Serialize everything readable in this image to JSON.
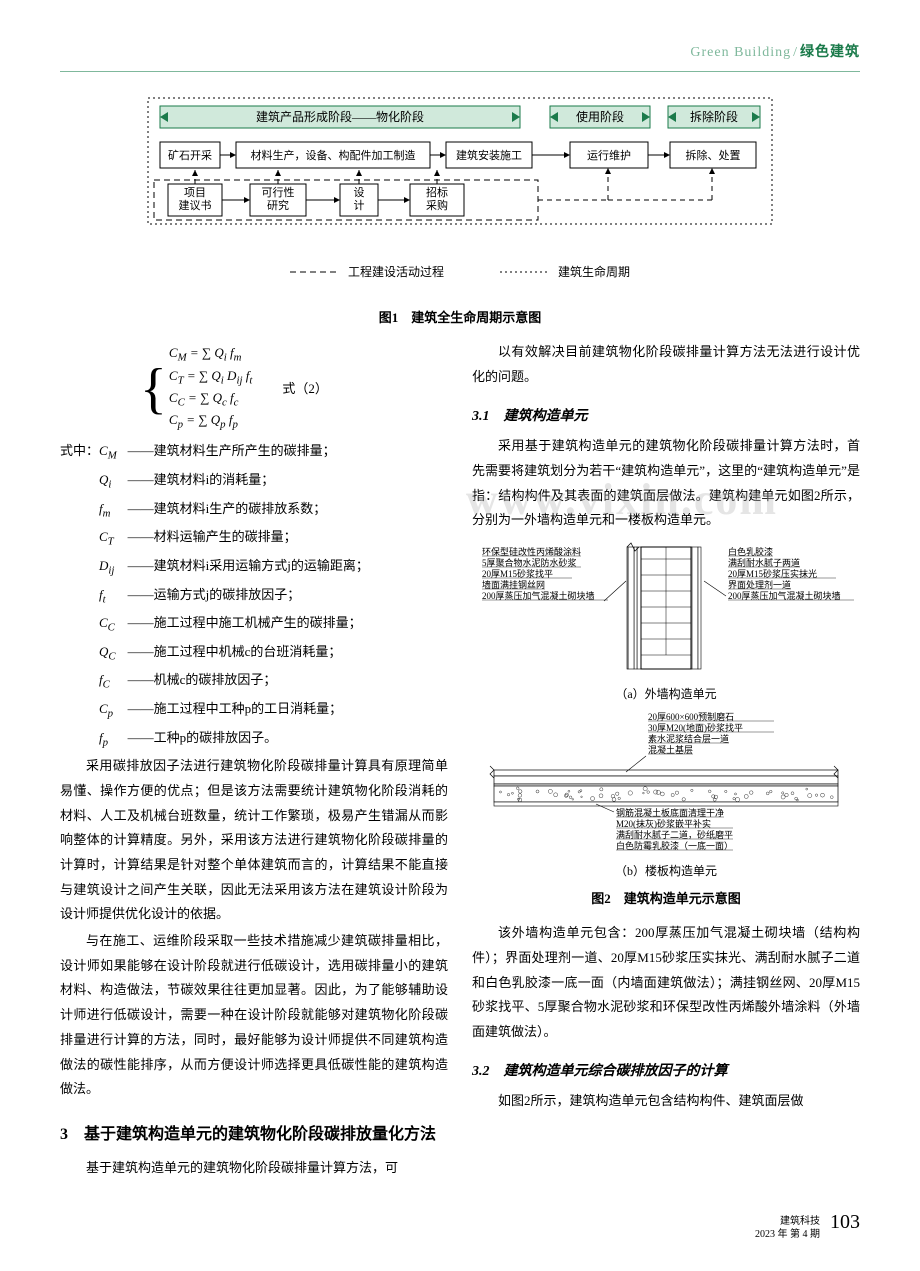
{
  "header": {
    "en": "Green Building",
    "sep": "/",
    "cn": "绿色建筑"
  },
  "fig1": {
    "caption": "图1　建筑全生命周期示意图",
    "phase_bar_color": "#d0e9db",
    "phase_bar_border": "#1a7a4a",
    "box_border": "#000000",
    "box_fill": "#ffffff",
    "font_size": 12,
    "phases": [
      "建筑产品形成阶段——物化阶段",
      "使用阶段",
      "拆除阶段"
    ],
    "row1": [
      "矿石开采",
      "材料生产，设备、构配件加工制造",
      "建筑安装施工",
      "运行维护",
      "拆除、处置"
    ],
    "row2": [
      "项目\n建议书",
      "可行性\n研究",
      "设\n计",
      "招标\n采购"
    ],
    "legend": [
      {
        "style": "dashed",
        "text": "工程建设活动过程"
      },
      {
        "style": "dotted",
        "text": "建筑生命周期"
      }
    ]
  },
  "equations": {
    "lines": [
      "C<sub>M</sub> = ∑ Q<sub>i</sub> f<sub>m</sub>",
      "C<sub>T</sub> = ∑ Q<sub>i</sub> D<sub>ij</sub> f<sub>t</sub>",
      "C<sub>C</sub> = ∑ Q<sub>c</sub> f<sub>c</sub>",
      "C<sub>p</sub> = ∑ Q<sub>p</sub> f<sub>p</sub>"
    ],
    "label": "式（2）"
  },
  "where_lead": "式中：",
  "where": [
    {
      "sym": "C<sub>M</sub>",
      "desc": "建筑材料生产所产生的碳排量；"
    },
    {
      "sym": "Q<sub>i</sub>",
      "desc": "建筑材料i的消耗量；"
    },
    {
      "sym": "f<sub>m</sub>",
      "desc": "建筑材料i生产的碳排放系数；"
    },
    {
      "sym": "C<sub>T</sub>",
      "desc": "材料运输产生的碳排量；"
    },
    {
      "sym": "D<sub>ij</sub>",
      "desc": "建筑材料i采用运输方式j的运输距离；"
    },
    {
      "sym": "f<sub>t</sub>",
      "desc": "运输方式j的碳排放因子；"
    },
    {
      "sym": "C<sub>C</sub>",
      "desc": "施工过程中施工机械产生的碳排量；"
    },
    {
      "sym": "Q<sub>C</sub>",
      "desc": "施工过程中机械c的台班消耗量；"
    },
    {
      "sym": "f<sub>C</sub>",
      "desc": "机械c的碳排放因子；"
    },
    {
      "sym": "C<sub>p</sub>",
      "desc": "施工过程中工种p的工日消耗量；"
    },
    {
      "sym": "f<sub>p</sub>",
      "desc": "工种p的碳排放因子。"
    }
  ],
  "left_paras": [
    "采用碳排放因子法进行建筑物化阶段碳排量计算具有原理简单易懂、操作方便的优点；但是该方法需要统计建筑物化阶段消耗的材料、人工及机械台班数量，统计工作繁琐，极易产生错漏从而影响整体的计算精度。另外，采用该方法进行建筑物化阶段碳排量的计算时，计算结果是针对整个单体建筑而言的，计算结果不能直接与建筑设计之间产生关联，因此无法采用该方法在建筑设计阶段为设计师提供优化设计的依据。",
    "与在施工、运维阶段采取一些技术措施减少建筑碳排量相比，设计师如果能够在设计阶段就进行低碳设计，选用碳排量小的建筑材料、构造做法，节碳效果往往更加显著。因此，为了能够辅助设计师进行低碳设计，需要一种在设计阶段就能够对建筑物化阶段碳排量进行计算的方法，同时，最好能够为设计师提供不同建筑构造做法的碳性能排序，从而方便设计师选择更具低碳性能的建筑构造做法。"
  ],
  "sec3_title": "3　基于建筑构造单元的建筑物化阶段碳排放量化方法",
  "sec3_para": "基于建筑构造单元的建筑物化阶段碳排量计算方法，可",
  "right_lead": "以有效解决目前建筑物化阶段碳排量计算方法无法进行设计优化的问题。",
  "sec31_title": "3.1　建筑构造单元",
  "sec31_para": "采用基于建筑构造单元的建筑物化阶段碳排量计算方法时，首先需要将建筑划分为若干“建筑构造单元”，这里的“建筑构造单元”是指：结构构件及其表面的建筑面层做法。建筑构建单元如图2所示，分别为一外墙构造单元和一楼板构造单元。",
  "fig2": {
    "caption": "图2　建筑构造单元示意图",
    "sub_a": "（a）外墙构造单元",
    "sub_b": "（b）楼板构造单元",
    "wall": {
      "left_labels": [
        "环保型硅改性丙烯酸涂料",
        "5厚聚合物水泥防水砂浆",
        "20厚M15砂浆找平",
        "墙面满挂钢丝网",
        "200厚蒸压加气混凝土砌块墙"
      ],
      "right_labels": [
        "白色乳胶漆",
        "满刮耐水腻子两道",
        "20厚M15砂浆压实抹光",
        "界面处理剂一道",
        "200厚蒸压加气混凝土砌块墙"
      ]
    },
    "slab": {
      "top_labels": [
        "20厚600×600预制磨石",
        "30厚M20(地面)砂浆找平",
        "素水泥浆结合层一道",
        "混凝土基层"
      ],
      "bottom_labels": [
        "钢筋混凝土板底面清理干净",
        "M20(抹灰)砂浆嵌平补实",
        "满刮耐水腻子二道，砂纸磨平",
        "白色防霉乳胶漆（一底一面）"
      ]
    },
    "colors": {
      "line": "#000000",
      "font_size": 9
    }
  },
  "sec31_para2": "该外墙构造单元包含：200厚蒸压加气混凝土砌块墙（结构构件）；界面处理剂一道、20厚M15砂浆压实抹光、满刮耐水腻子二道和白色乳胶漆一底一面（内墙面建筑做法）；满挂钢丝网、20厚M15砂浆找平、5厚聚合物水泥砂浆和环保型改性丙烯酸外墙涂料（外墙面建筑做法）。",
  "sec32_title": "3.2　建筑构造单元综合碳排放因子的计算",
  "sec32_para": "如图2所示，建筑构造单元包含结构构件、建筑面层做",
  "footer": {
    "journal": "建筑科技",
    "issue": "2023 年 第 4 期",
    "page": "103"
  },
  "watermark": "www.vixin.com"
}
